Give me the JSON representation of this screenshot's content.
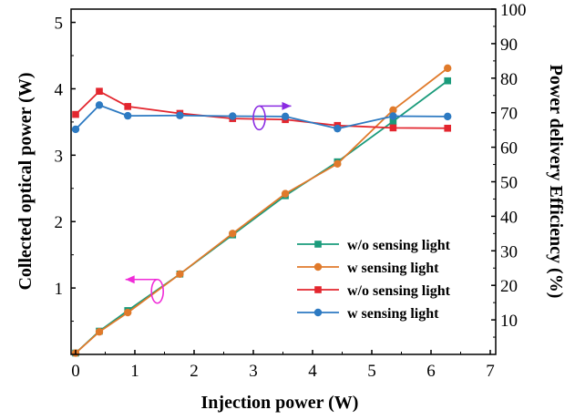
{
  "chart_data": {
    "type": "line",
    "xlabel": "Injection power (W)",
    "ylabel_left": "Collected optical power (W)",
    "ylabel_right": "Power delivery Efficiency (%)",
    "xlim": [
      0,
      7
    ],
    "ylim_left": [
      0,
      5.2
    ],
    "ylim_right": [
      0,
      100
    ],
    "x_ticks": [
      "0",
      "1",
      "2",
      "3",
      "4",
      "5",
      "6",
      "7"
    ],
    "y_left_ticks": [
      "1",
      "2",
      "3",
      "4",
      "5"
    ],
    "y_right_ticks": [
      "10",
      "20",
      "30",
      "40",
      "50",
      "60",
      "70",
      "80",
      "90",
      "100"
    ],
    "grid": false,
    "legend_position": "bottom-right",
    "series": [
      {
        "name": "w/o sensing light",
        "axis": "left",
        "color": "#1a9b7b",
        "marker": "square",
        "x": [
          0.0,
          0.4,
          0.88,
          1.76,
          2.65,
          3.54,
          4.42,
          5.36,
          6.28
        ],
        "y": [
          0.02,
          0.35,
          0.66,
          1.21,
          1.8,
          2.39,
          2.9,
          3.51,
          4.12
        ]
      },
      {
        "name": "w sensing light",
        "axis": "left",
        "color": "#e07a2b",
        "marker": "circle",
        "x": [
          0.0,
          0.4,
          0.88,
          1.76,
          2.65,
          3.54,
          4.42,
          5.36,
          6.28
        ],
        "y": [
          0.02,
          0.34,
          0.63,
          1.21,
          1.82,
          2.42,
          2.87,
          3.68,
          4.31
        ]
      },
      {
        "name": "w/o sensing light",
        "axis": "right",
        "color": "#e3262e",
        "marker": "square",
        "x": [
          0.0,
          0.4,
          0.88,
          1.76,
          2.65,
          3.54,
          4.42,
          5.36,
          6.28
        ],
        "y": [
          69.5,
          76.2,
          71.8,
          69.8,
          68.3,
          68.0,
          66.3,
          65.6,
          65.5
        ]
      },
      {
        "name": "w sensing light",
        "axis": "right",
        "color": "#2d7ac2",
        "marker": "circle",
        "x": [
          0.0,
          0.4,
          0.88,
          1.76,
          2.65,
          3.54,
          4.42,
          5.36,
          6.28
        ],
        "y": [
          65.2,
          72.2,
          69.1,
          69.2,
          69.0,
          68.9,
          65.4,
          69.0,
          68.9
        ]
      }
    ],
    "annotations": [
      {
        "type": "ellipse-arrow",
        "direction": "left",
        "color": "#f02bd8",
        "x": 1.38,
        "y_left": 0.95
      },
      {
        "type": "ellipse-arrow",
        "direction": "right",
        "color": "#8a2be2",
        "x": 3.1,
        "y_right": 68.5
      }
    ]
  }
}
